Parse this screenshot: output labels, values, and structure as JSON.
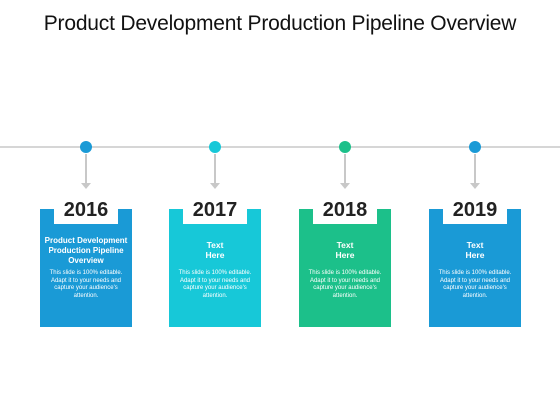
{
  "title": "Product Development Production Pipeline Overview",
  "items": [
    {
      "year": "2016",
      "heading": "Product Development Production Pipeline Overview",
      "body": "This slide is 100% editable. Adapt it to your needs and capture your audience's attention.",
      "color": "#1a9ad6",
      "dot_color": "#1a9ad6"
    },
    {
      "year": "2017",
      "heading": "Text Here",
      "body": "This slide is 100% editable. Adapt it to your needs and capture your audience's attention.",
      "color": "#17c8d8",
      "dot_color": "#17c8d8"
    },
    {
      "year": "2018",
      "heading": "Text Here",
      "body": "This slide is 100% editable. Adapt it to your needs and capture your audience's attention.",
      "color": "#1cc08a",
      "dot_color": "#1cc08a"
    },
    {
      "year": "2019",
      "heading": "Text Here",
      "body": "This slide is 100% editable. Adapt it to your needs and capture your audience's attention.",
      "color": "#1a9ad6",
      "dot_color": "#1a9ad6"
    }
  ]
}
